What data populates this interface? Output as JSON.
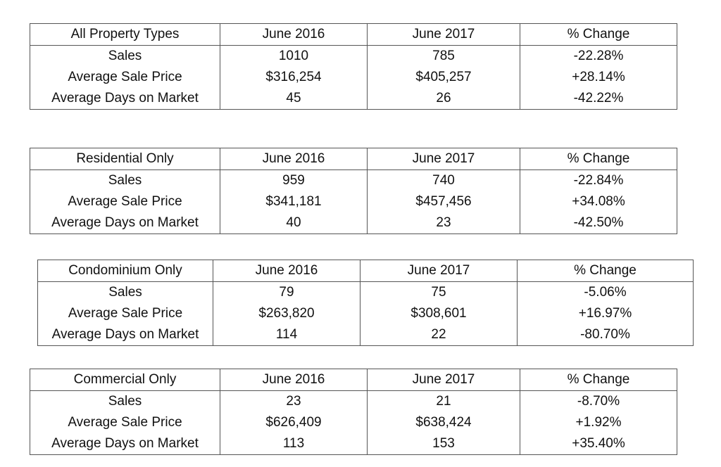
{
  "tables": [
    {
      "title": "All Property Types",
      "col1": "June 2016",
      "col2": "June 2017",
      "col3": "% Change",
      "rows": [
        {
          "label": "Sales",
          "v2016": "1010",
          "v2017": "785",
          "change": "-22.28%"
        },
        {
          "label": "Average Sale Price",
          "v2016": "$316,254",
          "v2017": "$405,257",
          "change": "+28.14%"
        },
        {
          "label": "Average Days on Market",
          "v2016": "45",
          "v2017": "26",
          "change": "-42.22%"
        }
      ]
    },
    {
      "title": "Residential Only",
      "col1": "June 2016",
      "col2": "June 2017",
      "col3": "% Change",
      "rows": [
        {
          "label": "Sales",
          "v2016": "959",
          "v2017": "740",
          "change": "-22.84%"
        },
        {
          "label": "Average Sale Price",
          "v2016": "$341,181",
          "v2017": "$457,456",
          "change": "+34.08%"
        },
        {
          "label": "Average Days on Market",
          "v2016": "40",
          "v2017": "23",
          "change": "-42.50%"
        }
      ]
    },
    {
      "title": "Condominium Only",
      "col1": "June 2016",
      "col2": "June 2017",
      "col3": "% Change",
      "rows": [
        {
          "label": "Sales",
          "v2016": "79",
          "v2017": "75",
          "change": "-5.06%"
        },
        {
          "label": "Average Sale Price",
          "v2016": "$263,820",
          "v2017": "$308,601",
          "change": "+16.97%"
        },
        {
          "label": "Average Days on Market",
          "v2016": "114",
          "v2017": "22",
          "change": "-80.70%"
        }
      ]
    },
    {
      "title": "Commercial Only",
      "col1": "June 2016",
      "col2": "June 2017",
      "col3": "% Change",
      "rows": [
        {
          "label": "Sales",
          "v2016": "23",
          "v2017": "21",
          "change": "-8.70%"
        },
        {
          "label": "Average Sale Price",
          "v2016": "$626,409",
          "v2017": "$638,424",
          "change": "+1.92%"
        },
        {
          "label": "Average Days on Market",
          "v2016": "113",
          "v2017": "153",
          "change": "+35.40%"
        }
      ]
    }
  ]
}
